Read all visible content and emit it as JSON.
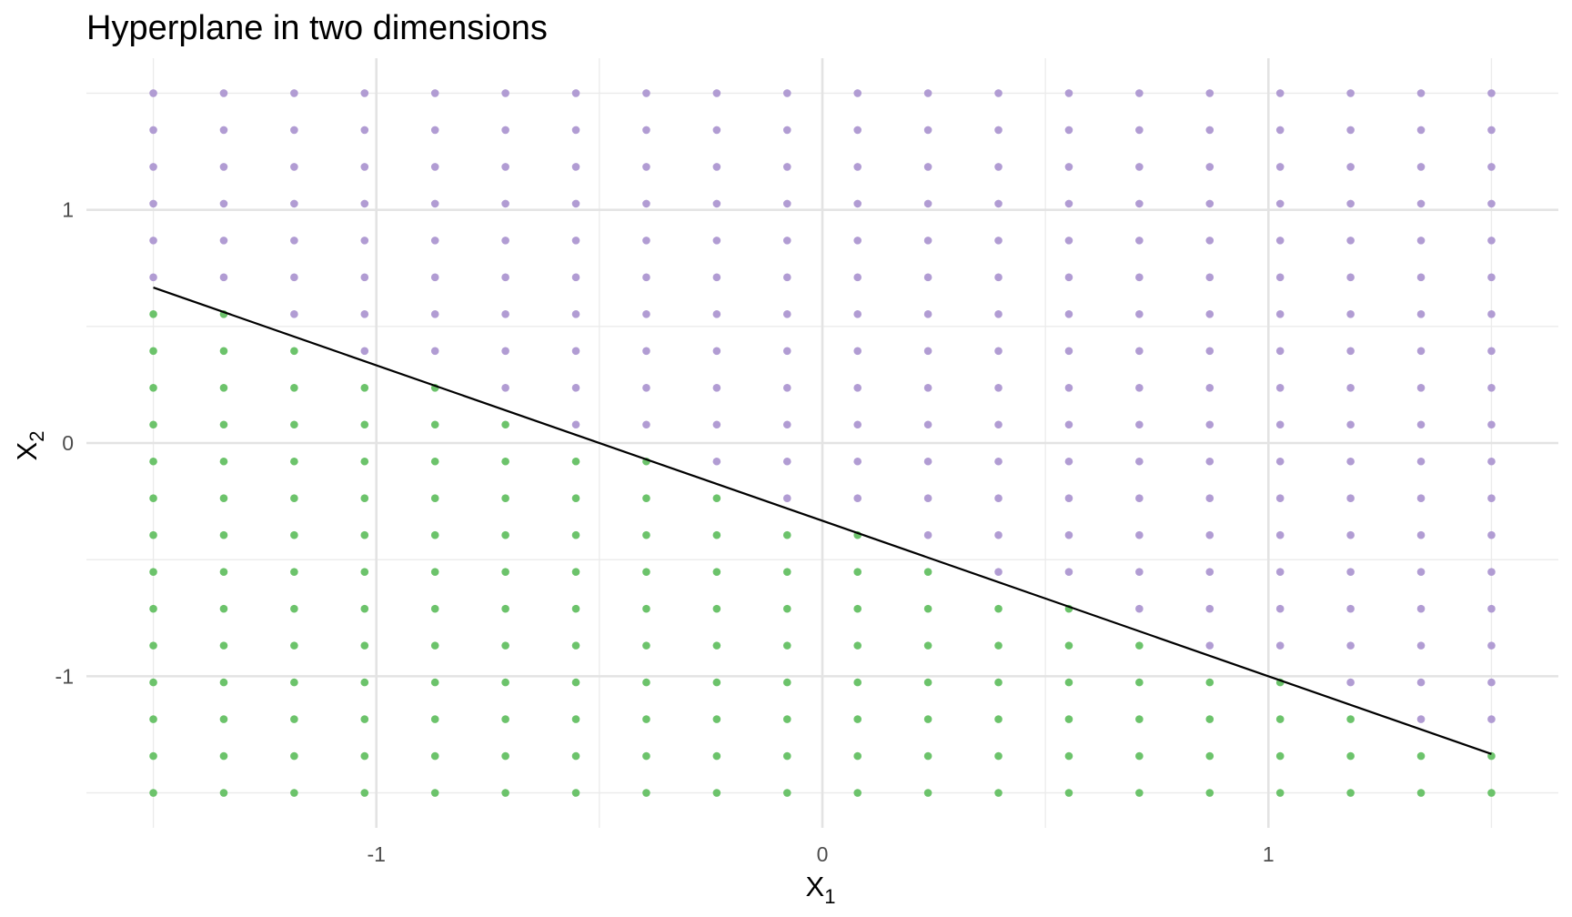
{
  "chart_data": {
    "type": "scatter",
    "title": "Hyperplane in two dimensions",
    "xlabel": {
      "base": "X",
      "subscript": "1"
    },
    "ylabel": {
      "base": "X",
      "subscript": "2"
    },
    "xlim": [
      -1.65,
      1.65
    ],
    "ylim": [
      -1.65,
      1.65
    ],
    "x_ticks": [
      -1,
      0,
      1
    ],
    "x_tick_labels": [
      "-1",
      "0",
      "1"
    ],
    "y_ticks": [
      -1,
      0,
      1
    ],
    "y_tick_labels": [
      "-1",
      "0",
      "1"
    ],
    "x_minor_ticks": [
      -1.5,
      -0.5,
      0.5,
      1.5
    ],
    "y_minor_ticks": [
      -1.5,
      -0.5,
      0.5,
      1.5
    ],
    "grid": true,
    "grid_range": {
      "x": [
        -1.5,
        1.5
      ],
      "y": [
        -1.5,
        1.5
      ]
    },
    "grid_steps": {
      "x": 20,
      "y": 20
    },
    "hyperplane": {
      "equation": "1 + 2*X1 + 3*X2 = 0",
      "intercept": 1,
      "coef_x1": 2,
      "coef_x2": 3,
      "x_range": [
        -1.5,
        1.5
      ]
    },
    "series": [
      {
        "rule": "1 + 2*X1 + 3*X2 > 0",
        "color": "#B19CD3"
      },
      {
        "rule": "1 + 2*X1 + 3*X2 < 0",
        "color": "#6CC36B"
      }
    ],
    "line_color": "#000000"
  }
}
